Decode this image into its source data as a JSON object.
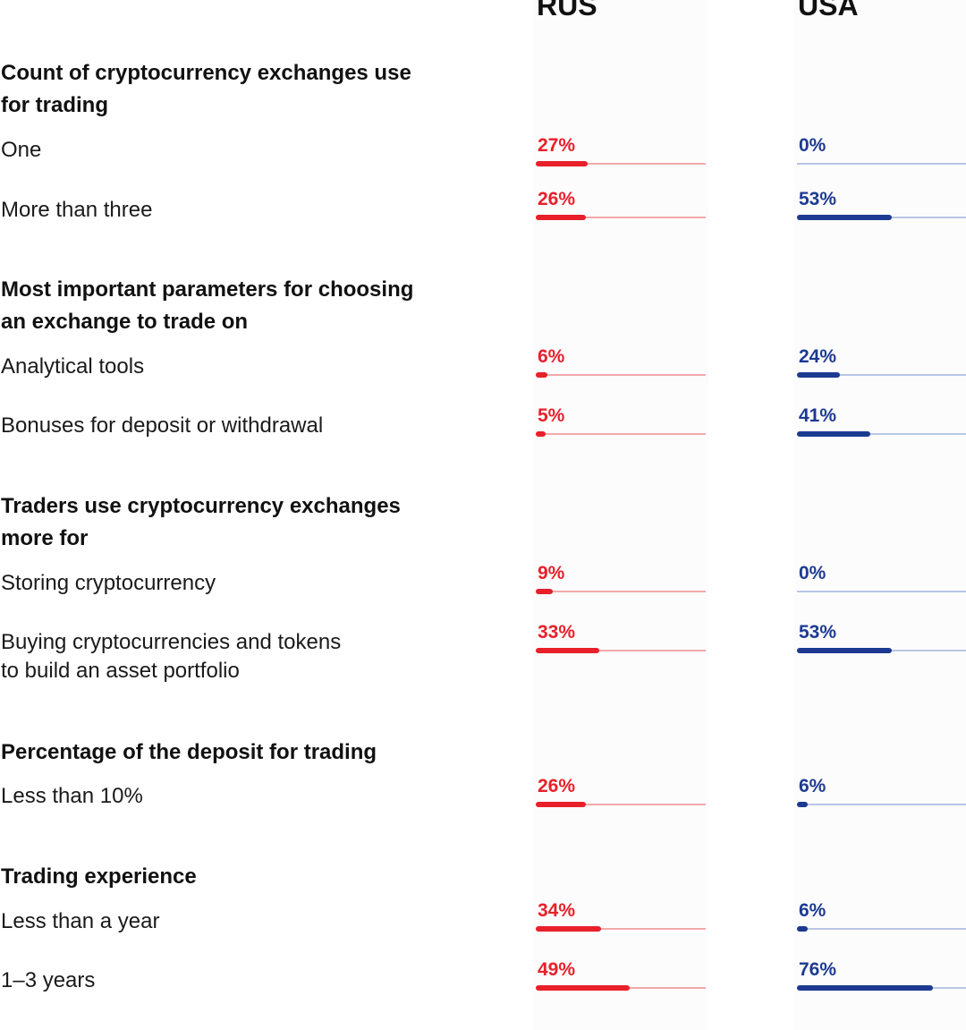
{
  "chart_data": {
    "type": "bar",
    "columns": [
      "RUS",
      "USA"
    ],
    "value_range": [
      0,
      100
    ],
    "colors": {
      "RUS": "#e8202a",
      "USA": "#1c3a91"
    },
    "sections": [
      {
        "title": "Count of cryptocurrency exchanges use\nfor trading",
        "rows": [
          {
            "label": "One",
            "rus": 27,
            "usa": 0,
            "rus_label": "27%",
            "usa_label": "0%"
          },
          {
            "label": "More than three",
            "rus": 26,
            "usa": 53,
            "rus_label": "26%",
            "usa_label": "53%"
          }
        ]
      },
      {
        "title": "Most important parameters for choosing\nan exchange to trade on",
        "rows": [
          {
            "label": "Analytical tools",
            "rus": 6,
            "usa": 24,
            "rus_label": "6%",
            "usa_label": "24%"
          },
          {
            "label": "Bonuses for deposit or withdrawal",
            "rus": 5,
            "usa": 41,
            "rus_label": "5%",
            "usa_label": "41%"
          }
        ]
      },
      {
        "title": "Traders use cryptocurrency exchanges\nmore for",
        "rows": [
          {
            "label": "Storing cryptocurrency",
            "rus": 9,
            "usa": 0,
            "rus_label": "9%",
            "usa_label": "0%"
          },
          {
            "label": "Buying cryptocurrencies and tokens\nto build an asset portfolio",
            "rus": 33,
            "usa": 53,
            "rus_label": "33%",
            "usa_label": "53%"
          }
        ]
      },
      {
        "title": "Percentage of the deposit for trading",
        "rows": [
          {
            "label": "Less than 10%",
            "rus": 26,
            "usa": 6,
            "rus_label": "26%",
            "usa_label": "6%"
          }
        ]
      },
      {
        "title": "Trading experience",
        "rows": [
          {
            "label": "Less than a year",
            "rus": 34,
            "usa": 6,
            "rus_label": "34%",
            "usa_label": "6%"
          },
          {
            "label": "1–3 years",
            "rus": 49,
            "usa": 76,
            "rus_label": "49%",
            "usa_label": "76%"
          }
        ]
      }
    ]
  }
}
